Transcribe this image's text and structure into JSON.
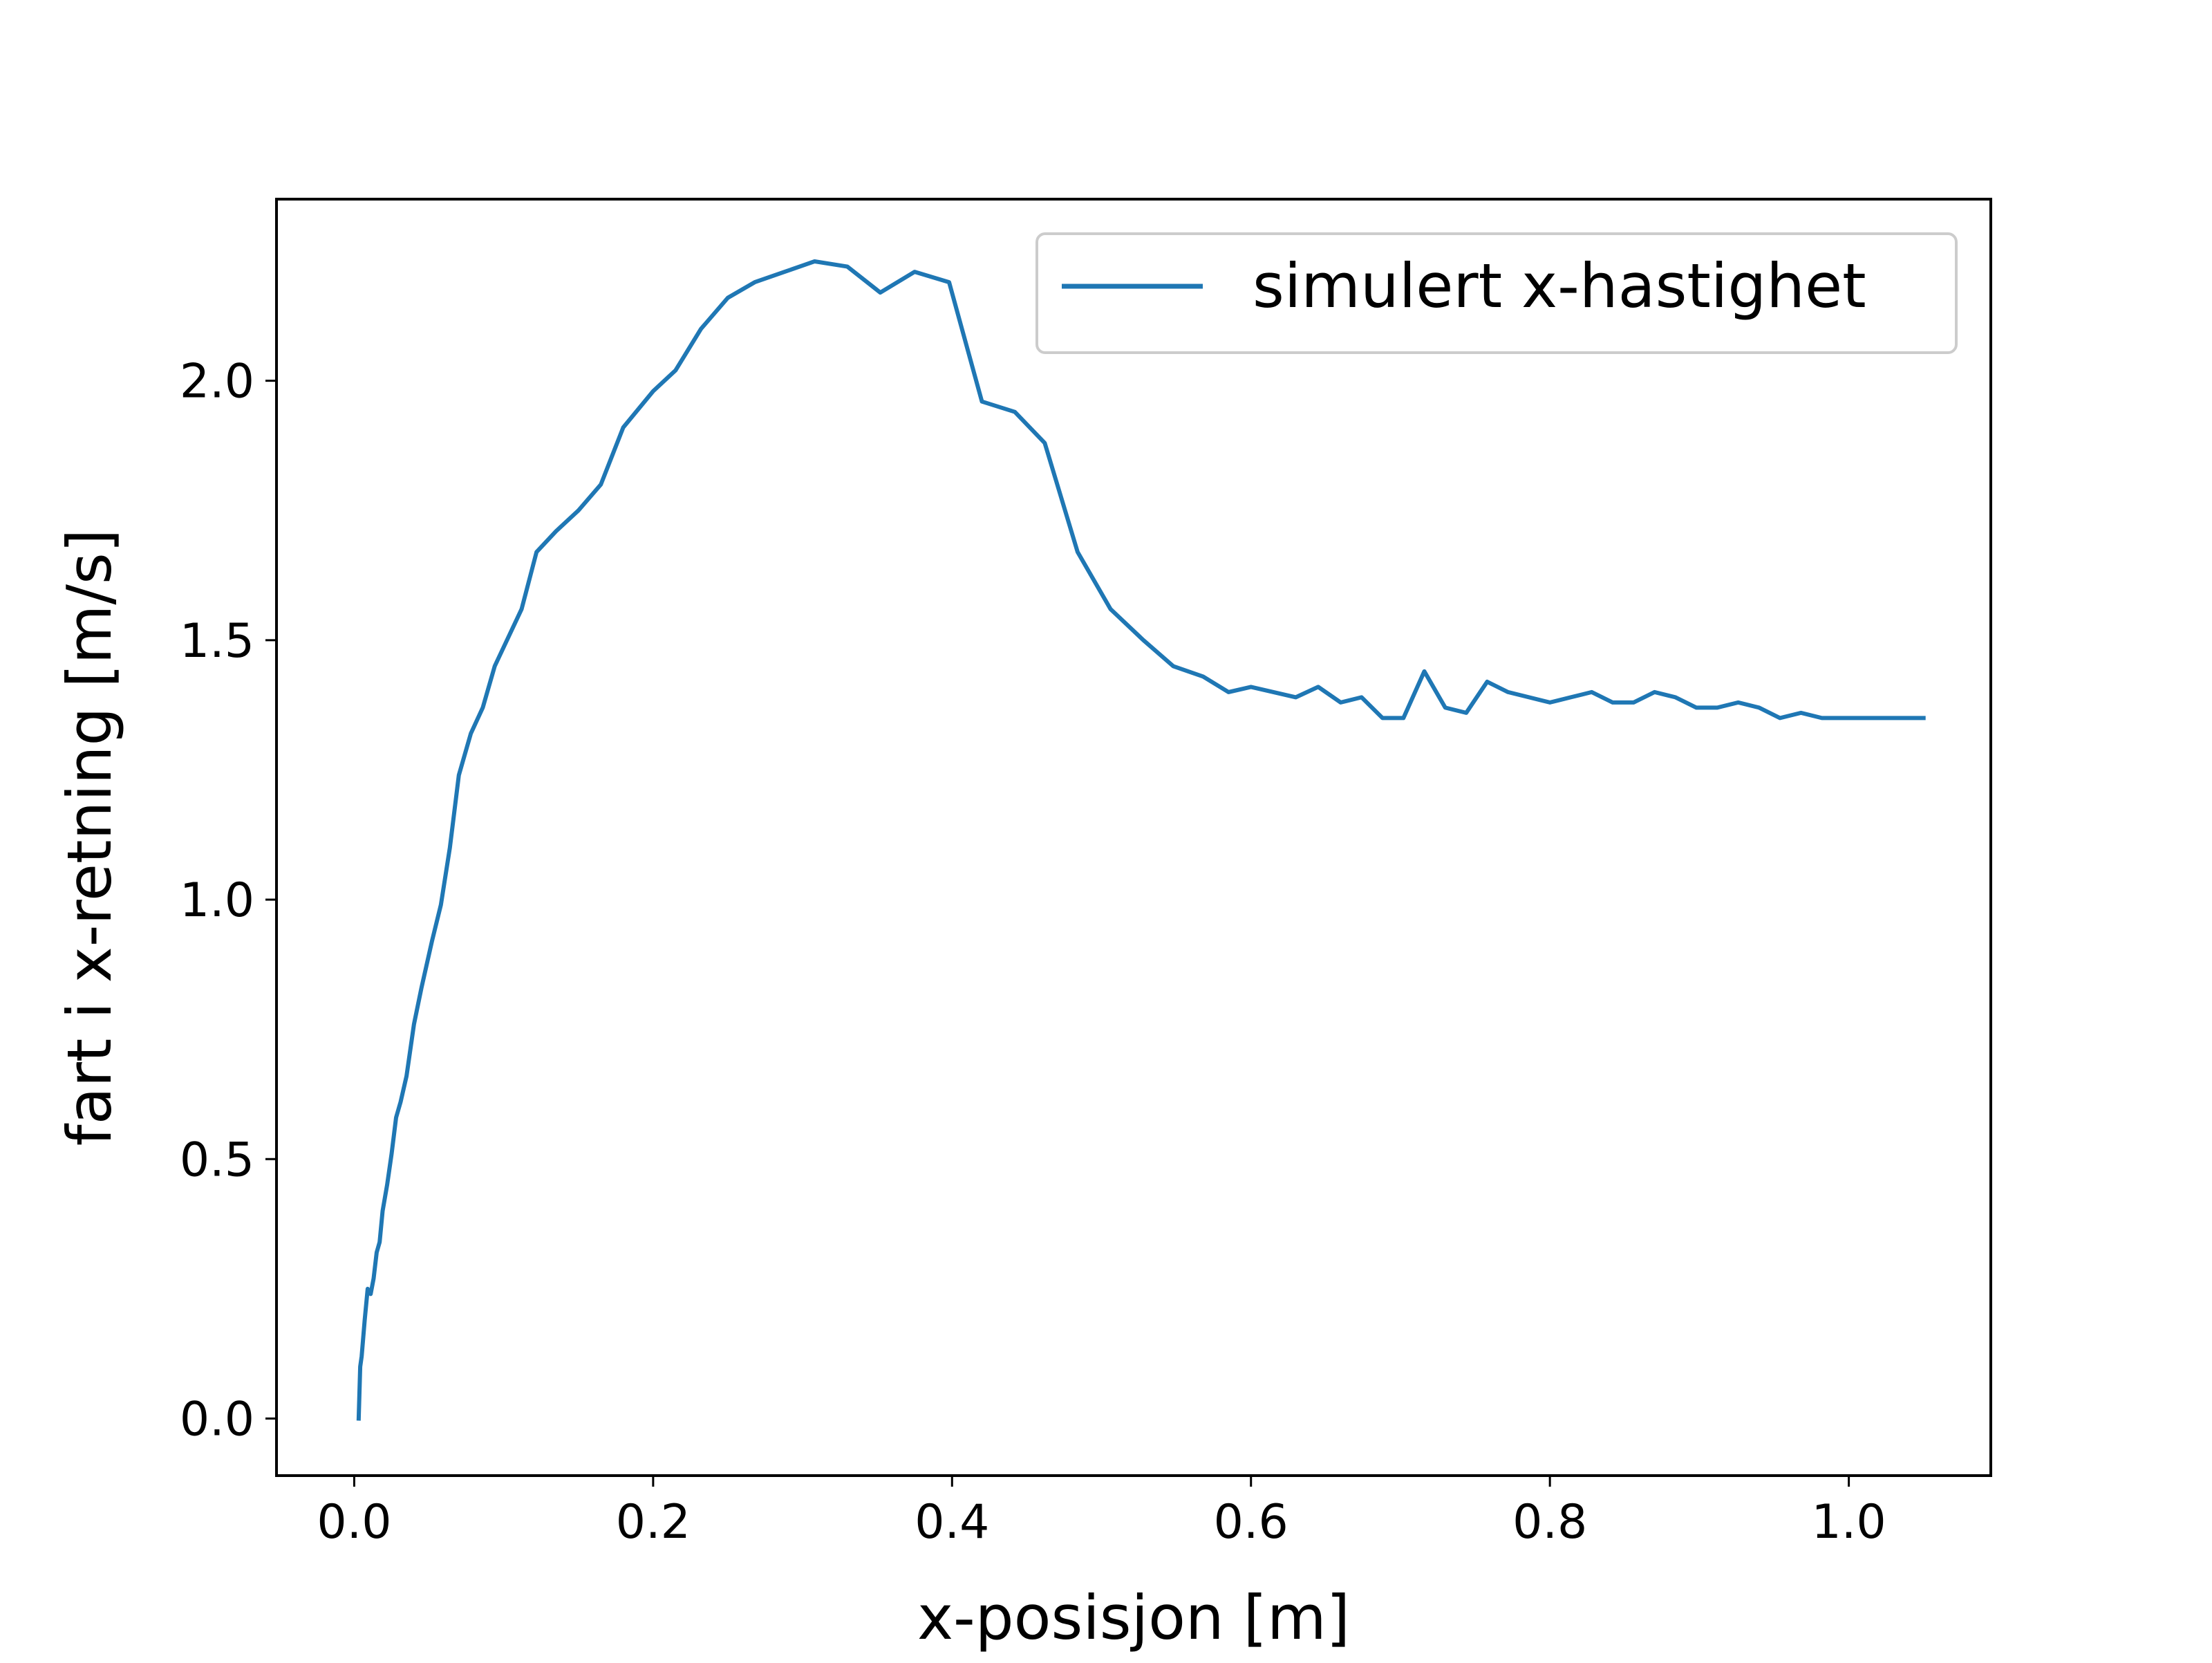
{
  "chart_data": {
    "type": "line",
    "title": "",
    "xlabel": "x-posisjon [m]",
    "ylabel": "fart i x-retning [m/s]",
    "xlim": [
      -0.052,
      1.095
    ],
    "ylim": [
      -0.11,
      2.35
    ],
    "xticks": [
      "0.0",
      "0.2",
      "0.4",
      "0.6",
      "0.8",
      "1.0"
    ],
    "yticks": [
      "0.0",
      "0.5",
      "1.0",
      "1.5",
      "2.0"
    ],
    "grid": false,
    "legend": {
      "placement": "upper right",
      "entries": [
        "simulert x-hastighet"
      ]
    },
    "series": [
      {
        "name": "simulert x-hastighet",
        "color": "#1f77b4",
        "x": [
          0.003,
          0.004,
          0.005,
          0.007,
          0.009,
          0.011,
          0.013,
          0.015,
          0.017,
          0.019,
          0.022,
          0.025,
          0.028,
          0.031,
          0.035,
          0.04,
          0.045,
          0.052,
          0.058,
          0.064,
          0.07,
          0.078,
          0.086,
          0.094,
          0.112,
          0.122,
          0.135,
          0.15,
          0.165,
          0.18,
          0.2,
          0.215,
          0.232,
          0.25,
          0.268,
          0.288,
          0.308,
          0.33,
          0.352,
          0.375,
          0.398,
          0.42,
          0.442,
          0.462,
          0.484,
          0.506,
          0.528,
          0.548,
          0.568,
          0.585,
          0.6,
          0.615,
          0.63,
          0.645,
          0.66,
          0.674,
          0.688,
          0.702,
          0.716,
          0.73,
          0.744,
          0.758,
          0.772,
          0.786,
          0.8,
          0.814,
          0.828,
          0.842,
          0.856,
          0.87,
          0.884,
          0.898,
          0.912,
          0.926,
          0.94,
          0.954,
          0.968,
          0.982,
          0.996,
          1.01,
          1.024,
          1.038,
          1.05
        ],
        "y": [
          0.0,
          0.1,
          0.12,
          0.19,
          0.25,
          0.24,
          0.27,
          0.32,
          0.34,
          0.4,
          0.45,
          0.51,
          0.58,
          0.61,
          0.66,
          0.76,
          0.83,
          0.92,
          0.99,
          1.1,
          1.24,
          1.32,
          1.37,
          1.45,
          1.56,
          1.67,
          1.71,
          1.75,
          1.8,
          1.91,
          1.98,
          2.02,
          2.1,
          2.16,
          2.19,
          2.21,
          2.23,
          2.22,
          2.17,
          2.21,
          2.19,
          1.96,
          1.94,
          1.88,
          1.67,
          1.56,
          1.5,
          1.45,
          1.43,
          1.4,
          1.41,
          1.4,
          1.39,
          1.41,
          1.38,
          1.39,
          1.35,
          1.35,
          1.44,
          1.37,
          1.36,
          1.42,
          1.4,
          1.39,
          1.38,
          1.39,
          1.4,
          1.38,
          1.38,
          1.4,
          1.39,
          1.37,
          1.37,
          1.38,
          1.37,
          1.35,
          1.36,
          1.35,
          1.35,
          1.35,
          1.35,
          1.35,
          1.35
        ]
      }
    ]
  }
}
